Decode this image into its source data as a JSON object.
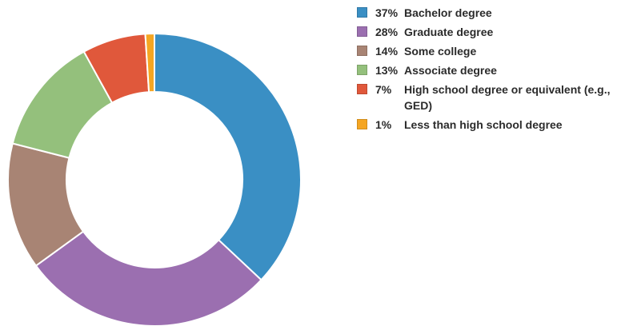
{
  "chart_data": {
    "type": "pie",
    "variant": "donut",
    "title": "",
    "legend_position": "right",
    "slices": [
      {
        "label": "Bachelor degree",
        "value": 37,
        "value_label": "37%",
        "color": "#3a8fc4"
      },
      {
        "label": "Graduate degree",
        "value": 28,
        "value_label": "28%",
        "color": "#9b6fb0"
      },
      {
        "label": "Some college",
        "value": 14,
        "value_label": "14%",
        "color": "#a88474"
      },
      {
        "label": "Associate degree",
        "value": 13,
        "value_label": "13%",
        "color": "#94c07c"
      },
      {
        "label": "High school degree or equivalent (e.g., GED)",
        "value": 7,
        "value_label": "7%",
        "color": "#e0583b"
      },
      {
        "label": "Less than high school degree",
        "value": 1,
        "value_label": "1%",
        "color": "#f5a623"
      }
    ]
  }
}
